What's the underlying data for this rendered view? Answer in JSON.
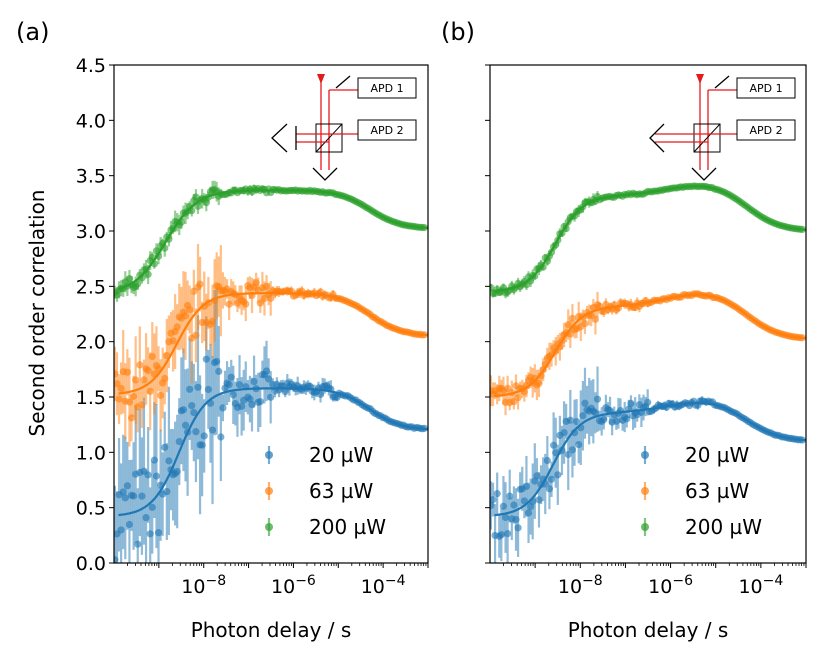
{
  "chart_data": [
    {
      "panel": "(a)",
      "type": "scatter",
      "xscale": "log",
      "xlim": [
        1e-10,
        0.001
      ],
      "ylim": [
        0,
        4.5
      ],
      "xlabel": "Photon delay / s",
      "ylabel": "Second order correlation",
      "xtick_labels": [
        {
          "base": "10",
          "exp": "−8",
          "value": 1e-08
        },
        {
          "base": "10",
          "exp": "−6",
          "value": 1e-06
        },
        {
          "base": "10",
          "exp": "−4",
          "value": 0.0001
        }
      ],
      "ytick_labels": [
        "0.0",
        "0.5",
        "1.0",
        "1.5",
        "2.0",
        "2.5",
        "3.0",
        "3.5",
        "4.0",
        "4.5"
      ],
      "legend": {
        "location": "lower-right",
        "entries": [
          "20 µW",
          "63 µW",
          "200 µW"
        ]
      },
      "inset": {
        "setup": "unfolded-mirror",
        "labels": [
          "APD 1",
          "APD 2"
        ]
      },
      "series": [
        {
          "name": "20 µW",
          "color": "#1f77b4",
          "low": 0.42,
          "plateau": 1.58,
          "end": 1.2,
          "knee_log": -8.55,
          "width": 0.3,
          "noise": 0.5,
          "fit_start_log": -9.9
        },
        {
          "name": "63 µW",
          "color": "#ff7f0e",
          "low": 1.52,
          "plateau": 2.44,
          "end": 2.05,
          "knee_log": -8.6,
          "width": 0.3,
          "noise": 0.3,
          "fit_start_log": -9.9
        },
        {
          "name": "200 µW",
          "color": "#2ca02c",
          "low": 2.43,
          "plateau": 3.37,
          "end": 3.02,
          "knee_log": -8.85,
          "width": 0.35,
          "noise": 0.07,
          "fit_start_log": -9.9
        }
      ]
    },
    {
      "panel": "(b)",
      "type": "scatter",
      "xscale": "log",
      "xlim": [
        1e-10,
        0.001
      ],
      "ylim": [
        0,
        4.5
      ],
      "xlabel": "Photon delay / s",
      "xtick_labels": [
        {
          "base": "10",
          "exp": "−8",
          "value": 1e-08
        },
        {
          "base": "10",
          "exp": "−6",
          "value": 1e-06
        },
        {
          "base": "10",
          "exp": "−4",
          "value": 0.0001
        }
      ],
      "legend": {
        "location": "lower-right",
        "entries": [
          "20 µW",
          "63 µW",
          "200 µW"
        ]
      },
      "inset": {
        "setup": "folded-mirror",
        "labels": [
          "APD 1",
          "APD 2"
        ]
      },
      "series": [
        {
          "name": "20 µW",
          "color": "#1f77b4",
          "low": 0.42,
          "plateau": 1.36,
          "bump": 0.1,
          "end": 1.1,
          "knee_log": -8.6,
          "width": 0.3,
          "noise": 0.25,
          "fit_start_log": -9.9
        },
        {
          "name": "63 µW",
          "color": "#ff7f0e",
          "low": 1.5,
          "plateau": 2.32,
          "bump": 0.12,
          "end": 2.02,
          "knee_log": -8.55,
          "width": 0.3,
          "noise": 0.1,
          "fit_start_log": -9.9
        },
        {
          "name": "200 µW",
          "color": "#2ca02c",
          "low": 2.45,
          "plateau": 3.32,
          "bump": 0.1,
          "end": 3.0,
          "knee_log": -8.55,
          "width": 0.3,
          "noise": 0.04,
          "fit_start_log": -9.9
        }
      ]
    }
  ]
}
